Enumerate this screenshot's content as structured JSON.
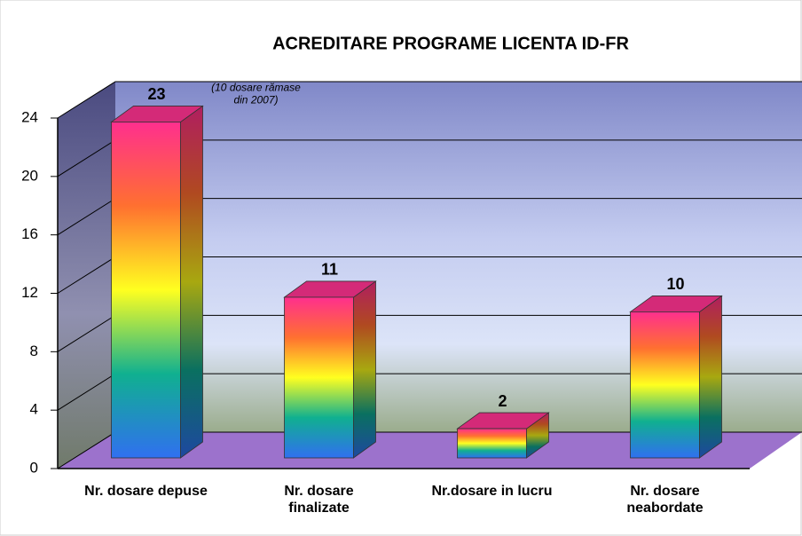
{
  "chart_data": {
    "type": "bar3d",
    "title": "ACREDITARE PROGRAME LICENTA ID-FR",
    "categories": [
      "Nr. dosare depuse",
      "Nr. dosare\nfinalizate",
      "Nr.dosare in lucru",
      "Nr. dosare\nneabordate"
    ],
    "values": [
      23,
      11,
      2,
      10
    ],
    "annotation": "(10 dosare rămase\ndin 2007)",
    "ylim": [
      0,
      24
    ],
    "yticks": [
      0,
      4,
      8,
      12,
      16,
      20,
      24
    ],
    "grid": true
  }
}
